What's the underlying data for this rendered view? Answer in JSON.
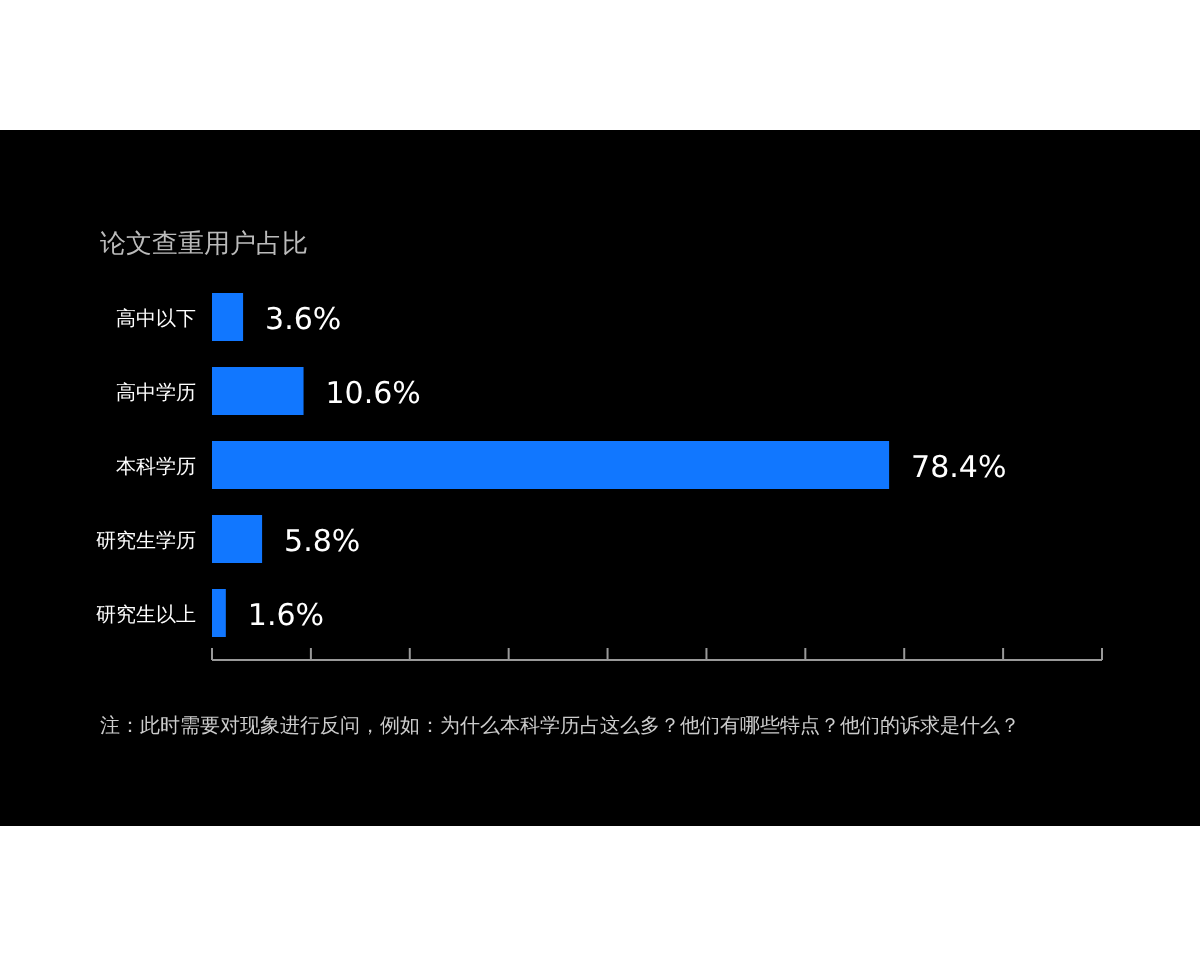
{
  "chart_data": {
    "type": "bar",
    "orientation": "horizontal",
    "title": "论文查重用户占比",
    "categories": [
      "高中以下",
      "高中学历",
      "本科学历",
      "研究生学历",
      "研究生以上"
    ],
    "values": [
      3.6,
      10.6,
      78.4,
      5.8,
      1.6
    ],
    "value_labels": [
      "3.6%",
      "10.6%",
      "78.4%",
      "5.8%",
      "1.6%"
    ],
    "color": "#1177ff",
    "xlim": [
      0,
      103.05
    ],
    "xticks": [
      {
        "value": 0,
        "label": null
      },
      {
        "value": 11.45,
        "label": null
      },
      {
        "value": 22.9,
        "label": null
      },
      {
        "value": 34.35,
        "label": null
      },
      {
        "value": 45.8,
        "label": null
      },
      {
        "value": 57.25,
        "label": null
      },
      {
        "value": 68.7,
        "label": null
      },
      {
        "value": 80.15,
        "label": null
      },
      {
        "value": 91.6,
        "label": null
      },
      {
        "value": 103.05,
        "label": null
      }
    ],
    "tick_labels": "y",
    "annotations": [
      "注：此时需要对现象进行反问，例如：为什么本科学历占这么多？他们有哪些特点？他们的诉求是什么？"
    ]
  }
}
